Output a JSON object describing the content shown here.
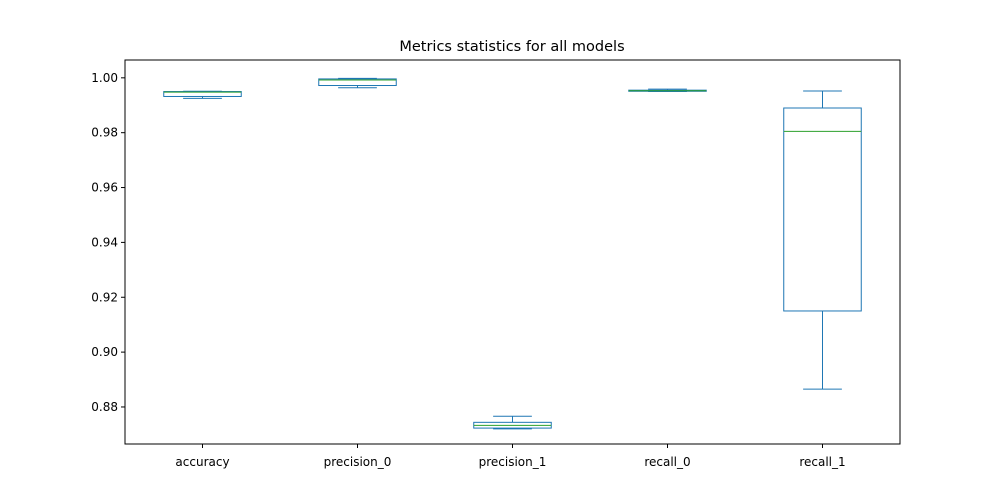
{
  "chart_data": {
    "type": "box",
    "title": "Metrics statistics for all models",
    "xlabel": "",
    "ylabel": "",
    "categories": [
      "accuracy",
      "precision_0",
      "precision_1",
      "recall_0",
      "recall_1"
    ],
    "y_ticks": [
      "0.88",
      "0.90",
      "0.92",
      "0.94",
      "0.96",
      "0.98",
      "1.00"
    ],
    "ylim": [
      0.8665,
      1.0065
    ],
    "grid": false,
    "colors": {
      "box": "#1f77b4",
      "median": "#2ca02c"
    },
    "boxes": [
      {
        "category": "accuracy",
        "whisker_low": 0.9925,
        "q1": 0.9932,
        "median": 0.9948,
        "q3": 0.995,
        "whisker_high": 0.9951
      },
      {
        "category": "precision_0",
        "whisker_low": 0.9964,
        "q1": 0.9972,
        "median": 0.9992,
        "q3": 0.9996,
        "whisker_high": 0.9998
      },
      {
        "category": "precision_1",
        "whisker_low": 0.872,
        "q1": 0.8723,
        "median": 0.8733,
        "q3": 0.8744,
        "whisker_high": 0.8766
      },
      {
        "category": "recall_0",
        "whisker_low": 0.995,
        "q1": 0.9951,
        "median": 0.9953,
        "q3": 0.9955,
        "whisker_high": 0.9959
      },
      {
        "category": "recall_1",
        "whisker_low": 0.8865,
        "q1": 0.915,
        "median": 0.9805,
        "q3": 0.989,
        "whisker_high": 0.9952
      }
    ]
  }
}
